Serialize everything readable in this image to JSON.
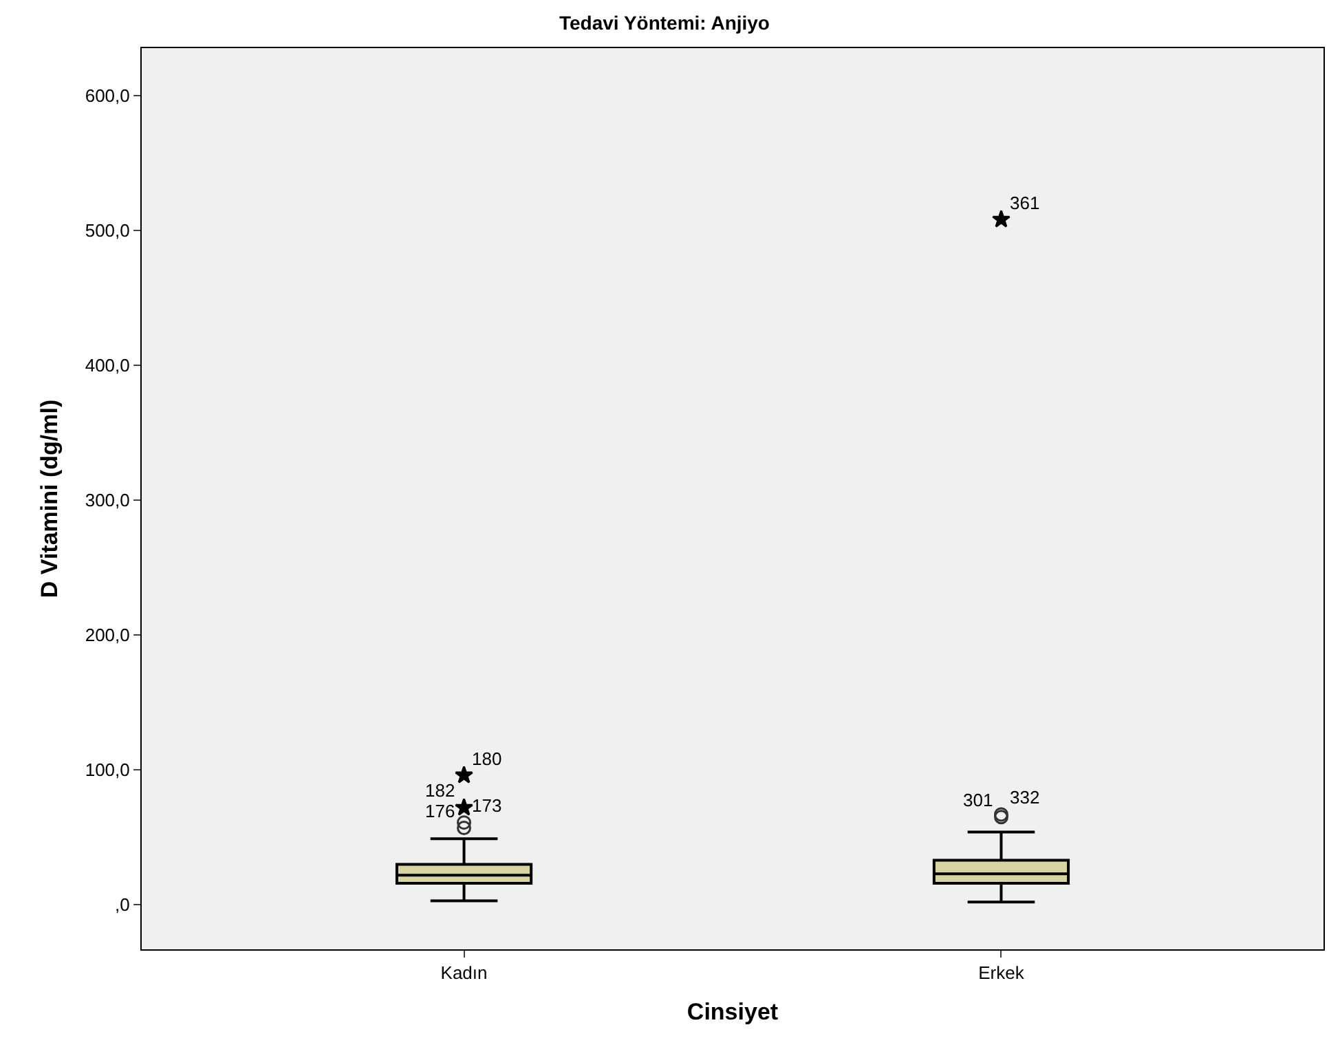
{
  "chart_data": {
    "type": "box",
    "title": "Tedavi Yöntemi: Anjiyo",
    "xlabel": "Cinsiyet",
    "ylabel": "D Vitamini (dg/ml)",
    "categories": [
      "Kadın",
      "Erkek"
    ],
    "color": "#d8d3a3",
    "boxes": [
      {
        "low": 3,
        "q1": 16,
        "median": 22,
        "q3": 30,
        "high": 49
      },
      {
        "low": 2,
        "q1": 16,
        "median": 23,
        "q3": 33,
        "high": 54
      }
    ],
    "series": [
      {
        "type": "scatter",
        "marker": "star",
        "color": "#000000",
        "x": [
          "Kadın",
          "Kadın",
          "Erkek"
        ],
        "values": [
          96,
          72,
          508
        ]
      },
      {
        "type": "scatter",
        "marker": "circle",
        "color": "#333333",
        "x": [
          "Kadın",
          "Kadın",
          "Erkek",
          "Erkek"
        ],
        "values": [
          61,
          57,
          67,
          65
        ]
      }
    ],
    "ylim": [
      -33,
      635
    ],
    "yticks": [
      {
        "value": 0,
        "label": ",0"
      },
      {
        "value": 100,
        "label": "100,0"
      },
      {
        "value": 200,
        "label": "200,0"
      },
      {
        "value": 300,
        "label": "300,0"
      },
      {
        "value": 400,
        "label": "400,0"
      },
      {
        "value": 500,
        "label": "500,0"
      },
      {
        "value": 600,
        "label": "600,0"
      }
    ],
    "annotations": [
      {
        "text": "180",
        "x": "Kadın",
        "y": 96
      },
      {
        "text": "182",
        "x": "Kadın",
        "y": 72
      },
      {
        "text": "173",
        "x": "Kadın",
        "y": 61
      },
      {
        "text": "176",
        "x": "Kadın",
        "y": 57
      },
      {
        "text": "332",
        "x": "Erkek",
        "y": 67
      },
      {
        "text": "301",
        "x": "Erkek",
        "y": 65
      },
      {
        "text": "361",
        "x": "Erkek",
        "y": 508
      }
    ],
    "grid": false
  }
}
